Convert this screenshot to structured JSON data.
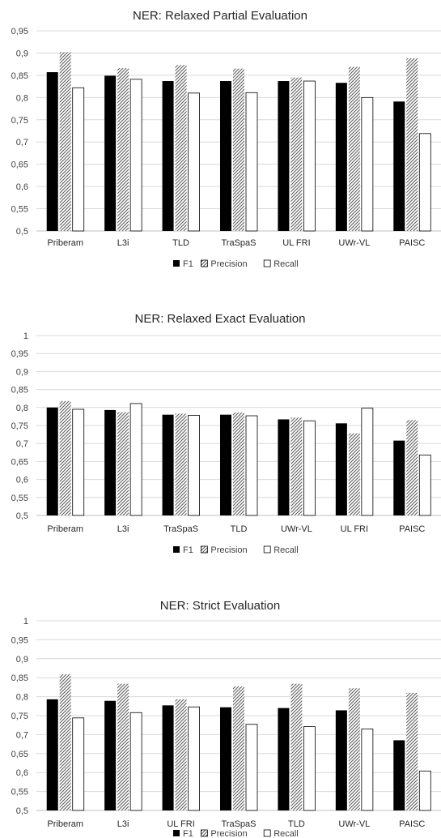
{
  "chart_data": [
    {
      "type": "bar",
      "title": "NER: Relaxed Partial Evaluation",
      "xlabel": "",
      "ylabel": "",
      "ylim": [
        0.5,
        0.95
      ],
      "yticks": [
        "0,5",
        "0,55",
        "0,6",
        "0,65",
        "0,7",
        "0,75",
        "0,8",
        "0,85",
        "0,9",
        "0,95"
      ],
      "categories": [
        "Priberam",
        "L3i",
        "TLD",
        "TraSpaS",
        "UL FRI",
        "UWr-VL",
        "PAISC"
      ],
      "series": [
        {
          "name": "F1",
          "values": [
            0.857,
            0.849,
            0.837,
            0.837,
            0.837,
            0.833,
            0.791
          ]
        },
        {
          "name": "Precision",
          "values": [
            0.902,
            0.866,
            0.873,
            0.865,
            0.845,
            0.869,
            0.888
          ]
        },
        {
          "name": "Recall",
          "values": [
            0.822,
            0.841,
            0.81,
            0.811,
            0.837,
            0.8,
            0.719
          ]
        }
      ],
      "grid": true,
      "legend": "bottom"
    },
    {
      "type": "bar",
      "title": "NER: Relaxed Exact Evaluation",
      "xlabel": "",
      "ylabel": "",
      "ylim": [
        0.5,
        1
      ],
      "yticks": [
        "0,5",
        "0,55",
        "0,6",
        "0,65",
        "0,7",
        "0,75",
        "0,8",
        "0,85",
        "0,9",
        "0,95",
        "1"
      ],
      "categories": [
        "Priberam",
        "L3i",
        "TraSpaS",
        "TLD",
        "UWr-VL",
        "UL FRI",
        "PAISC"
      ],
      "series": [
        {
          "name": "F1",
          "values": [
            0.8,
            0.793,
            0.78,
            0.78,
            0.767,
            0.756,
            0.708
          ]
        },
        {
          "name": "Precision",
          "values": [
            0.818,
            0.787,
            0.783,
            0.786,
            0.772,
            0.728,
            0.765
          ]
        },
        {
          "name": "Recall",
          "values": [
            0.795,
            0.811,
            0.778,
            0.777,
            0.763,
            0.798,
            0.668
          ]
        }
      ],
      "grid": true,
      "legend": "bottom"
    },
    {
      "type": "bar",
      "title": "NER: Strict Evaluation",
      "xlabel": "",
      "ylabel": "",
      "ylim": [
        0.5,
        1
      ],
      "yticks": [
        "0,5",
        "0,55",
        "0,6",
        "0,65",
        "0,7",
        "0,75",
        "0,8",
        "0,85",
        "0,9",
        "0,95",
        "1"
      ],
      "categories": [
        "Priberam",
        "L3i",
        "UL FRI",
        "TraSpaS",
        "TLD",
        "UWr-VL",
        "PAISC"
      ],
      "series": [
        {
          "name": "F1",
          "values": [
            0.793,
            0.789,
            0.777,
            0.772,
            0.77,
            0.764,
            0.685
          ]
        },
        {
          "name": "Precision",
          "values": [
            0.859,
            0.834,
            0.793,
            0.827,
            0.834,
            0.822,
            0.81
          ]
        },
        {
          "name": "Recall",
          "values": [
            0.744,
            0.758,
            0.773,
            0.727,
            0.721,
            0.715,
            0.604
          ]
        }
      ],
      "grid": true,
      "legend": "bottom"
    }
  ],
  "colors": {
    "f1": "#000000",
    "precision_hatch": "#595959",
    "recall_fill": "#ffffff",
    "bar_stroke": "#000000",
    "grid": "#d9d9d9"
  }
}
